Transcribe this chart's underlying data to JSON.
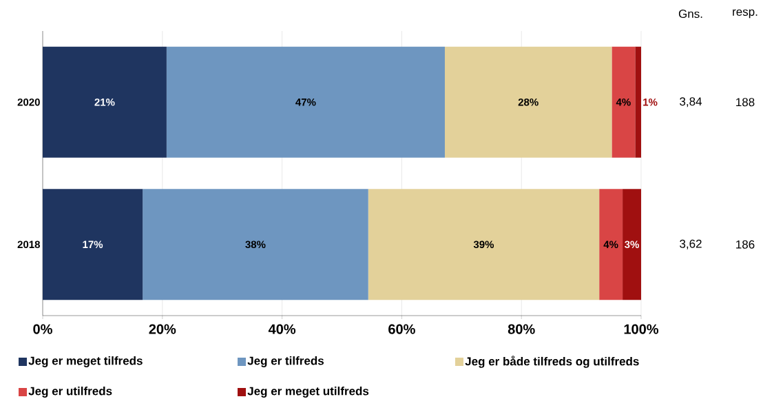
{
  "chart_data": {
    "type": "bar",
    "orientation": "horizontal",
    "stacked": true,
    "categories": [
      "2020",
      "2018"
    ],
    "series": [
      {
        "name": "Jeg er meget tilfreds",
        "color": "#1f3560",
        "values": [
          20.7,
          16.7
        ],
        "value_labels": [
          "21%",
          "17%"
        ]
      },
      {
        "name": "Jeg er tilfreds",
        "color": "#6e96c0",
        "values": [
          46.5,
          37.7
        ],
        "value_labels": [
          "47%",
          "38%"
        ]
      },
      {
        "name": "Jeg er både tilfreds og utilfreds",
        "color": "#e3d19a",
        "values": [
          27.9,
          38.6
        ],
        "value_labels": [
          "28%",
          "39%"
        ]
      },
      {
        "name": "Jeg er utilfreds",
        "color": "#d94545",
        "values": [
          3.9,
          3.9
        ],
        "value_labels": [
          "4%",
          "4%"
        ]
      },
      {
        "name": "Jeg er meget utilfreds",
        "color": "#a01010",
        "values": [
          1.0,
          3.1
        ],
        "value_labels": [
          "1%",
          "3%"
        ]
      }
    ],
    "xlim": [
      0,
      100
    ],
    "xticks": [
      {
        "value": 0,
        "label": "0%"
      },
      {
        "value": 20,
        "label": "20%"
      },
      {
        "value": 40,
        "label": "40%"
      },
      {
        "value": 60,
        "label": "60%"
      },
      {
        "value": 80,
        "label": "80%"
      },
      {
        "value": 100,
        "label": "100%"
      }
    ],
    "grid": "x",
    "legend": "bottom",
    "annotations": [
      "Gns.",
      "resp.",
      "3,84",
      "188",
      "3,62",
      "186"
    ]
  }
}
